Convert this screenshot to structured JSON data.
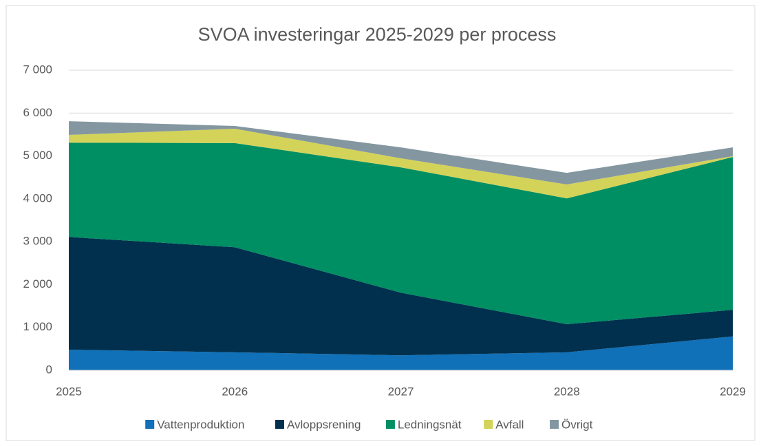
{
  "chart_data": {
    "type": "stacked_area",
    "title": "SVOA investeringar 2025-2029 per process",
    "categories": [
      "2025",
      "2026",
      "2027",
      "2028",
      "2029"
    ],
    "series": [
      {
        "name": "Vattenproduktion",
        "color": "#1070b8",
        "values": [
          480,
          420,
          350,
          420,
          790
        ]
      },
      {
        "name": "Avloppsrening",
        "color": "#00304e",
        "values": [
          2630,
          2450,
          1460,
          655,
          620
        ]
      },
      {
        "name": "Ledningsnät",
        "color": "#008e63",
        "values": [
          2200,
          2430,
          2925,
          2935,
          3565
        ]
      },
      {
        "name": "Avfall",
        "color": "#d3d35a",
        "values": [
          180,
          335,
          210,
          325,
          20
        ]
      },
      {
        "name": "Övrigt",
        "color": "#8497a0",
        "values": [
          320,
          65,
          255,
          270,
          205
        ]
      }
    ],
    "ylim": [
      0,
      7000
    ],
    "yticks": [
      0,
      {
        "value": 1000,
        "label": "1 000"
      },
      {
        "value": 2000,
        "label": "2 000"
      },
      {
        "value": 3000,
        "label": "3 000"
      },
      {
        "value": 4000,
        "label": "4 000"
      },
      {
        "value": 5000,
        "label": "5 000"
      },
      {
        "value": 6000,
        "label": "6 000"
      },
      {
        "value": 7000,
        "label": "7 000"
      }
    ],
    "grid": true,
    "legend": "bottom"
  }
}
